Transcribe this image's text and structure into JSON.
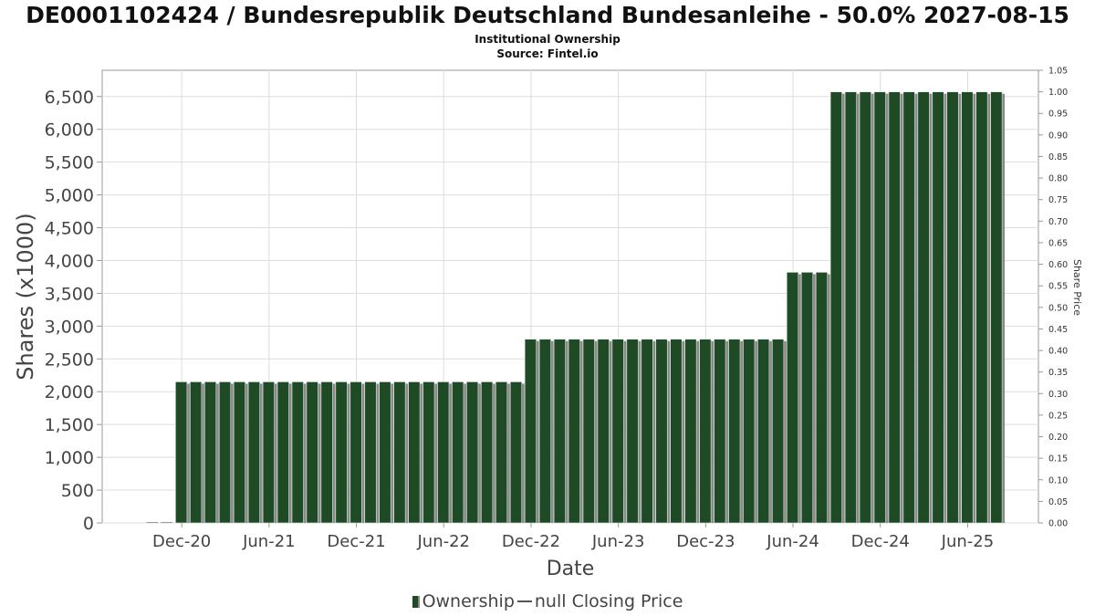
{
  "chart_data": {
    "type": "bar",
    "title": "DE0001102424 / Bundesrepublik Deutschland Bundesanleihe - 50.0% 2027-08-15",
    "subtitle": "Institutional Ownership",
    "source": "Source: Fintel.io",
    "xlabel": "Date",
    "ylabel": "Shares (x1000)",
    "y2label": "Share Price",
    "ylim": [
      0,
      6900
    ],
    "y2lim": [
      0,
      1.05
    ],
    "yticks": [
      "0",
      "500",
      "1,000",
      "1,500",
      "2,000",
      "2,500",
      "3,000",
      "3,500",
      "4,000",
      "4,500",
      "5,000",
      "5,500",
      "6,000",
      "6,500"
    ],
    "y2ticks": [
      "0.00",
      "0.05",
      "0.10",
      "0.15",
      "0.20",
      "0.25",
      "0.30",
      "0.35",
      "0.40",
      "0.45",
      "0.50",
      "0.55",
      "0.60",
      "0.65",
      "0.70",
      "0.75",
      "0.80",
      "0.85",
      "0.90",
      "0.95",
      "1.00",
      "1.05"
    ],
    "xticks": [
      "Dec-20",
      "Jun-21",
      "Dec-21",
      "Jun-22",
      "Dec-22",
      "Jun-23",
      "Dec-23",
      "Jun-24",
      "Dec-24",
      "Jun-25"
    ],
    "grid": true,
    "legend_position": "bottom-center",
    "colors": {
      "bar": "#1e4a25",
      "bar_shadow": "#8a8a8a",
      "grid": "#dddddd",
      "axis": "#999999"
    },
    "series": [
      {
        "name": "Ownership",
        "values": [
          0,
          0,
          2150,
          2150,
          2150,
          2150,
          2150,
          2150,
          2150,
          2150,
          2150,
          2150,
          2150,
          2150,
          2150,
          2150,
          2150,
          2150,
          2150,
          2150,
          2150,
          2150,
          2150,
          2150,
          2150,
          2150,
          2800,
          2800,
          2800,
          2800,
          2800,
          2800,
          2800,
          2800,
          2800,
          2800,
          2800,
          2800,
          2800,
          2800,
          2800,
          2800,
          2800,
          2800,
          3820,
          3820,
          3820,
          6570,
          6570,
          6570,
          6570,
          6570,
          6570,
          6570,
          6570,
          6570,
          6570,
          6570,
          6570
        ]
      }
    ],
    "legend": [
      "Ownership",
      "null Closing Price"
    ]
  }
}
